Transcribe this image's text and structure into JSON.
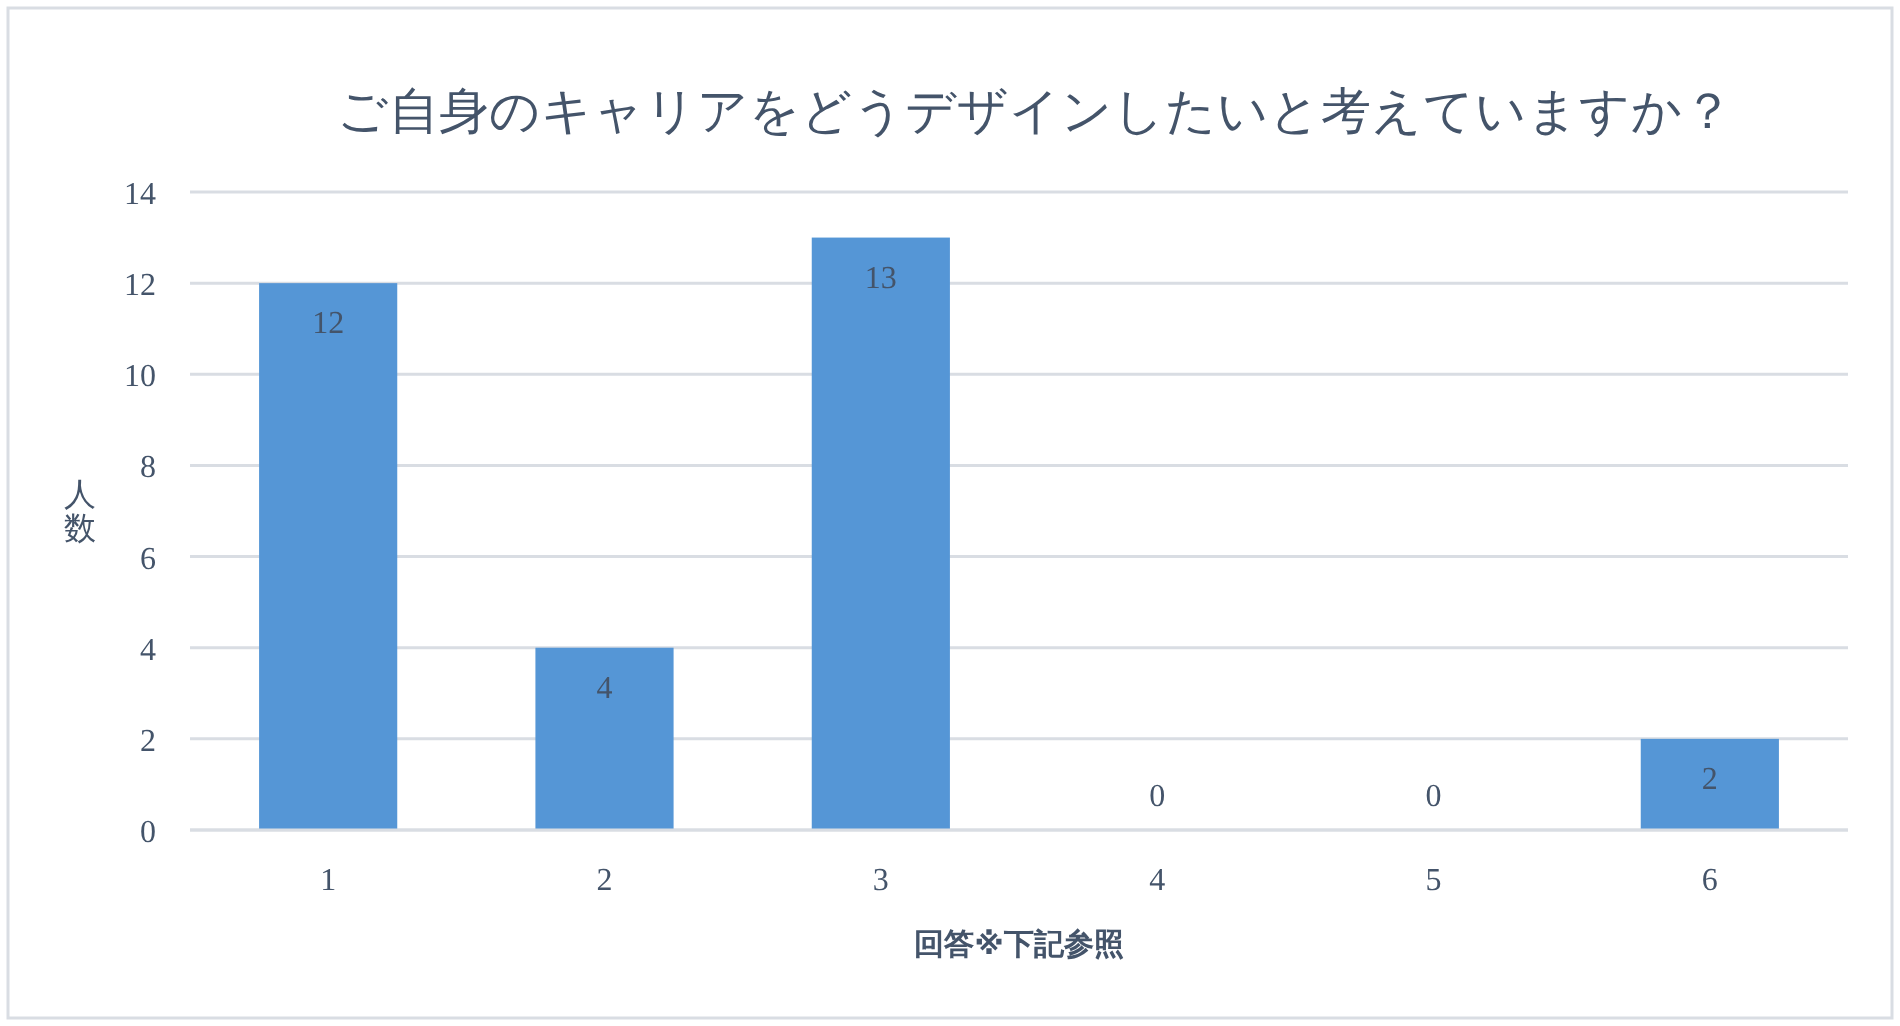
{
  "chart_data": {
    "type": "bar",
    "title": "ご自身のキャリアをどうデザインしたいと考えていますか？",
    "xlabel": "回答※下記参照",
    "ylabel": "人数",
    "categories": [
      "1",
      "2",
      "3",
      "4",
      "5",
      "6"
    ],
    "values": [
      12,
      4,
      13,
      0,
      0,
      2
    ],
    "color": "#5596d6",
    "ylim": [
      0,
      14
    ],
    "yticks": [
      0,
      2,
      4,
      6,
      8,
      10,
      12,
      14
    ],
    "grid": "y",
    "data_labels": true
  }
}
